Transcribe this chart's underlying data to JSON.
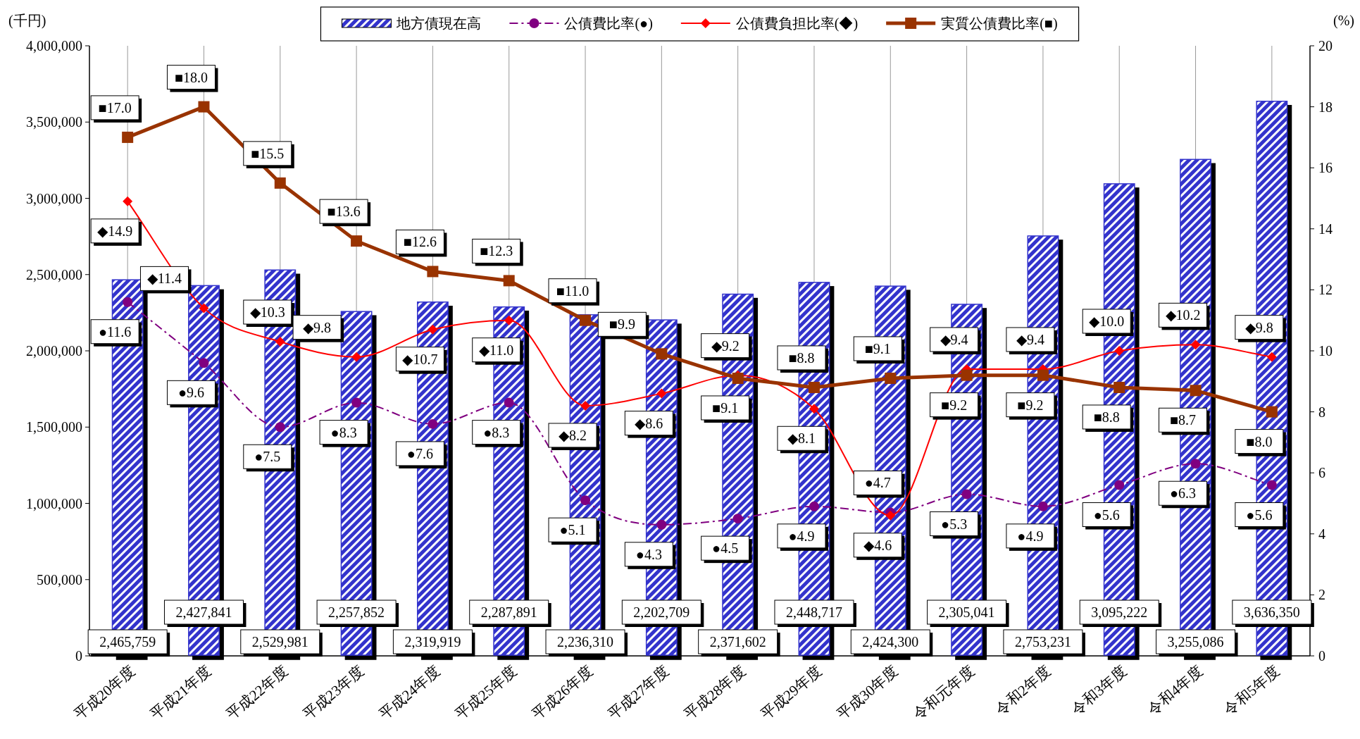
{
  "chart_data": {
    "type": "bar",
    "ylabel": "(千円)",
    "y2label": "(%)",
    "categories": [
      "平成20年度",
      "平成21年度",
      "平成22年度",
      "平成23年度",
      "平成24年度",
      "平成25年度",
      "平成26年度",
      "平成27年度",
      "平成28年度",
      "平成29年度",
      "平成30年度",
      "令和元年度",
      "令和2年度",
      "令和3年度",
      "令和4年度",
      "令和5年度"
    ],
    "series": [
      {
        "name": "地方債現在高",
        "color": "#3333cc",
        "values": [
          2465759,
          2427841,
          2529981,
          2257852,
          2319919,
          2287891,
          2236310,
          2202709,
          2371602,
          2448717,
          2424300,
          2305041,
          2753231,
          3095222,
          3255086,
          3636350
        ],
        "value_labels": [
          "2,465,759",
          "2,427,841",
          "2,529,981",
          "2,257,852",
          "2,319,919",
          "2,287,891",
          "2,236,310",
          "2,202,709",
          "2,371,602",
          "2,448,717",
          "2,424,300",
          "2,305,041",
          "2,753,231",
          "3,095,222",
          "3,255,086",
          "3,636,350"
        ]
      },
      {
        "name": "公債費比率(●)",
        "type": "line",
        "axis": "y2",
        "color": "#800080",
        "marker": "circle",
        "line_style": "dashed",
        "values": [
          11.6,
          9.6,
          7.5,
          8.3,
          7.6,
          8.3,
          5.1,
          4.3,
          4.5,
          4.9,
          4.7,
          5.3,
          4.9,
          5.6,
          6.3,
          5.6
        ],
        "value_labels": [
          "●11.6",
          "●9.6",
          "●7.5",
          "●8.3",
          "●7.6",
          "●8.3",
          "●5.1",
          "●4.3",
          "●4.5",
          "●4.9",
          "●4.7",
          "●5.3",
          "●4.9",
          "●5.6",
          "●6.3",
          "●5.6"
        ]
      },
      {
        "name": "公債費負担比率(◆)",
        "type": "line",
        "axis": "y2",
        "color": "#ff0000",
        "marker": "diamond",
        "line_style": "solid",
        "values": [
          14.9,
          11.4,
          10.3,
          9.8,
          10.7,
          11.0,
          8.2,
          8.6,
          9.2,
          8.1,
          4.6,
          9.4,
          9.4,
          10.0,
          10.2,
          9.8
        ],
        "value_labels": [
          "◆14.9",
          "◆11.4",
          "◆10.3",
          "◆9.8",
          "◆10.7",
          "◆11.0",
          "◆8.2",
          "◆8.6",
          "◆9.2",
          "◆8.1",
          "◆4.6",
          "◆9.4",
          "◆9.4",
          "◆10.0",
          "◆10.2",
          "◆9.8"
        ]
      },
      {
        "name": "実質公債費比率(■)",
        "type": "line",
        "axis": "y2",
        "color": "#993300",
        "marker": "square",
        "line_style": "solid",
        "values": [
          17.0,
          18.0,
          15.5,
          13.6,
          12.6,
          12.3,
          11.0,
          9.9,
          9.1,
          8.8,
          9.1,
          9.2,
          9.2,
          8.8,
          8.7,
          8.0
        ],
        "value_labels": [
          "■17.0",
          "■18.0",
          "■15.5",
          "■13.6",
          "■12.6",
          "■12.3",
          "■11.0",
          "■9.9",
          "■9.1",
          "■8.8",
          "■9.1",
          "■9.2",
          "■9.2",
          "■8.8",
          "■8.7",
          "■8.0"
        ]
      }
    ],
    "ylim": [
      0,
      4000000
    ],
    "yticks": [
      {
        "value": 0,
        "label": "0"
      },
      {
        "value": 500000,
        "label": "500,000"
      },
      {
        "value": 1000000,
        "label": "1,000,000"
      },
      {
        "value": 1500000,
        "label": "1,500,000"
      },
      {
        "value": 2000000,
        "label": "2,000,000"
      },
      {
        "value": 2500000,
        "label": "2,500,000"
      },
      {
        "value": 3000000,
        "label": "3,000,000"
      },
      {
        "value": 3500000,
        "label": "3,500,000"
      },
      {
        "value": 4000000,
        "label": "4,000,000"
      }
    ],
    "y2lim": [
      0,
      20
    ],
    "y2ticks": [
      0,
      2,
      4,
      6,
      8,
      10,
      12,
      14,
      16,
      18,
      20
    ],
    "grid": "x",
    "legend": "top"
  }
}
